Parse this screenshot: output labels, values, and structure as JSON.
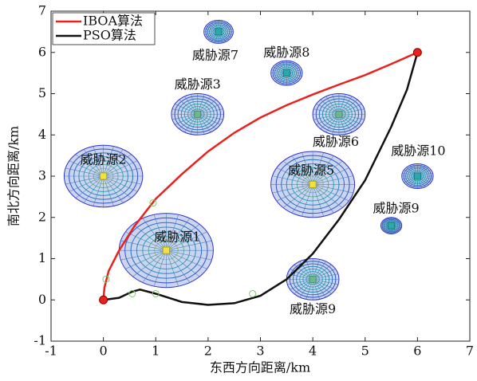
{
  "chart_data": {
    "type": "line",
    "x_label": "东西方向距离/km",
    "y_label": "南北方向距离/km",
    "xlim": [
      -1,
      7
    ],
    "ylim": [
      -1,
      7
    ],
    "xticks": [
      -1,
      0,
      1,
      2,
      3,
      4,
      5,
      6,
      7
    ],
    "yticks": [
      -1,
      0,
      1,
      2,
      3,
      4,
      5,
      6,
      7
    ],
    "legend": "upper left",
    "waypoint_color": "#7cc96a",
    "series": [
      {
        "name": "IBOA算法",
        "color": "#e8231f",
        "x": [
          0,
          0.02,
          0.1,
          0.3,
          0.6,
          1,
          1.5,
          2,
          2.5,
          3,
          3.5,
          4,
          4.5,
          5,
          5.5,
          6
        ],
        "y": [
          0,
          0.3,
          0.7,
          1.2,
          1.8,
          2.45,
          3.05,
          3.6,
          4.05,
          4.42,
          4.72,
          4.98,
          5.22,
          5.45,
          5.72,
          6
        ],
        "waypoints": {
          "x": [
            0.05,
            0.95
          ],
          "y": [
            0.5,
            2.35
          ]
        }
      },
      {
        "name": "PSO算法",
        "color": "#111111",
        "x": [
          0,
          0.3,
          0.55,
          0.7,
          1,
          1.5,
          2,
          2.5,
          3,
          3.5,
          4,
          4.5,
          5,
          5.5,
          5.8,
          6
        ],
        "y": [
          0,
          0.05,
          0.2,
          0.25,
          0.15,
          -0.05,
          -0.12,
          -0.08,
          0.1,
          0.5,
          1.12,
          1.95,
          2.9,
          4.2,
          5.1,
          6
        ],
        "waypoints": {
          "x": [
            0.55,
            1,
            2.85
          ],
          "y": [
            0.15,
            0.15,
            0.15
          ]
        }
      }
    ],
    "threats": [
      {
        "name": "威胁源1",
        "x": 1.2,
        "y": 1.2,
        "r": 0.9
      },
      {
        "name": "威胁源2",
        "x": 0,
        "y": 3,
        "r": 0.75
      },
      {
        "name": "威胁源3",
        "x": 1.8,
        "y": 4.5,
        "r": 0.5
      },
      {
        "name": "威胁源5",
        "x": 4,
        "y": 2.8,
        "r": 0.8
      },
      {
        "name": "威胁源6",
        "x": 4.5,
        "y": 4.5,
        "r": 0.5
      },
      {
        "name": "威胁源7",
        "x": 2.2,
        "y": 6.5,
        "r": 0.28
      },
      {
        "name": "威胁源8",
        "x": 3.5,
        "y": 5.5,
        "r": 0.3
      },
      {
        "name": "威胁源9",
        "x": 4,
        "y": 0.5,
        "r": 0.5
      },
      {
        "name": "威胁源9",
        "x": 5.5,
        "y": 1.8,
        "r": 0.2
      },
      {
        "name": "威胁源10",
        "x": 6,
        "y": 3,
        "r": 0.3
      }
    ]
  }
}
